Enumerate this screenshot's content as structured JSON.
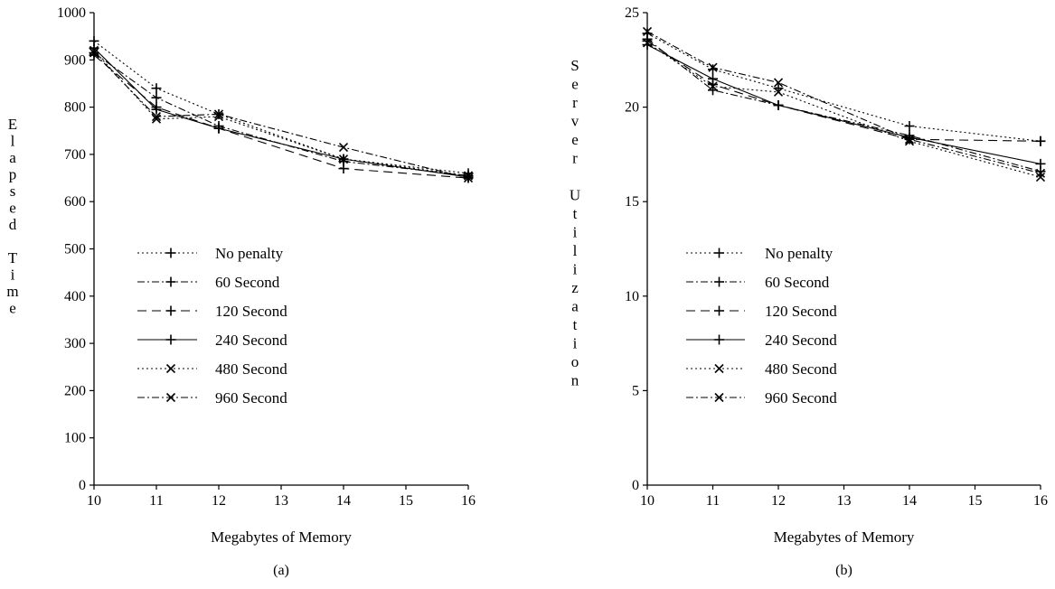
{
  "chart_data": [
    {
      "type": "line",
      "panel_label": "(a)",
      "title": "",
      "xlabel": "Megabytes of Memory",
      "ylabel": "Elapsed Time",
      "xlim": [
        10,
        16
      ],
      "ylim": [
        0,
        1000
      ],
      "xticks": [
        "10",
        "11",
        "12",
        "13",
        "14",
        "15",
        "16"
      ],
      "yticks": [
        "0",
        "100",
        "200",
        "300",
        "400",
        "500",
        "600",
        "700",
        "800",
        "900",
        "1000"
      ],
      "x": [
        10,
        11,
        12,
        14,
        16
      ],
      "legend_position": "center-left",
      "series": [
        {
          "name": "No penalty",
          "marker": "plus",
          "dash": "2,3",
          "values": [
            940,
            840,
            785,
            690,
            660
          ]
        },
        {
          "name": "60 Second",
          "marker": "plus",
          "dash": "8,3,2,3",
          "values": [
            915,
            820,
            760,
            685,
            655
          ]
        },
        {
          "name": "120 Second",
          "marker": "plus",
          "dash": "10,6",
          "values": [
            910,
            800,
            755,
            670,
            650
          ]
        },
        {
          "name": "240 Second",
          "marker": "plus",
          "dash": "",
          "values": [
            925,
            795,
            755,
            690,
            652
          ]
        },
        {
          "name": "480 Second",
          "marker": "cross",
          "dash": "2,3",
          "values": [
            920,
            775,
            780,
            690,
            655
          ]
        },
        {
          "name": "960 Second",
          "marker": "cross",
          "dash": "8,3,2,3",
          "values": [
            915,
            780,
            785,
            715,
            650
          ]
        }
      ]
    },
    {
      "type": "line",
      "panel_label": "(b)",
      "title": "",
      "xlabel": "Megabytes of Memory",
      "ylabel": "Server Utilization",
      "xlim": [
        10,
        16
      ],
      "ylim": [
        0,
        25
      ],
      "xticks": [
        "10",
        "11",
        "12",
        "13",
        "14",
        "15",
        "16"
      ],
      "yticks": [
        "0",
        "5",
        "10",
        "15",
        "20",
        "25"
      ],
      "x": [
        10,
        11,
        12,
        14,
        16
      ],
      "legend_position": "center-left",
      "series": [
        {
          "name": "No penalty",
          "marker": "plus",
          "dash": "2,3",
          "values": [
            23.9,
            22.0,
            21.0,
            19.0,
            18.2
          ]
        },
        {
          "name": "60 Second",
          "marker": "plus",
          "dash": "8,3,2,3",
          "values": [
            23.6,
            20.9,
            20.1,
            18.5,
            16.6
          ]
        },
        {
          "name": "120 Second",
          "marker": "plus",
          "dash": "10,6",
          "values": [
            23.5,
            21.2,
            20.1,
            18.3,
            18.2
          ]
        },
        {
          "name": "240 Second",
          "marker": "plus",
          "dash": "",
          "values": [
            23.3,
            21.5,
            20.1,
            18.4,
            17.0
          ]
        },
        {
          "name": "480 Second",
          "marker": "cross",
          "dash": "2,3",
          "values": [
            23.4,
            21.1,
            20.8,
            18.2,
            16.3
          ]
        },
        {
          "name": "960 Second",
          "marker": "cross",
          "dash": "8,3,2,3",
          "values": [
            24.0,
            22.1,
            21.3,
            18.3,
            16.5
          ]
        }
      ]
    }
  ]
}
